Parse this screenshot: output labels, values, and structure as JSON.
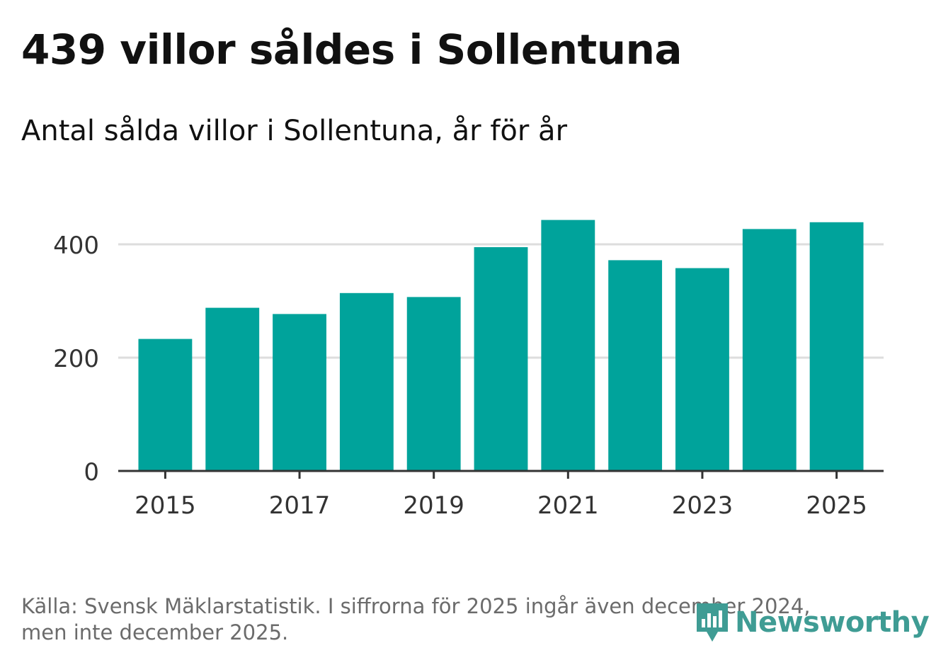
{
  "header": {
    "title": "439 villor såldes i Sollentuna",
    "subtitle": "Antal sålda villor i Sollentuna, år för år"
  },
  "chart_data": {
    "type": "bar",
    "categories": [
      "2015",
      "2016",
      "2017",
      "2018",
      "2019",
      "2020",
      "2021",
      "2022",
      "2023",
      "2024",
      "2025"
    ],
    "values": [
      233,
      288,
      277,
      314,
      307,
      395,
      443,
      372,
      358,
      427,
      439
    ],
    "x_tick_labels": [
      "2015",
      "2017",
      "2019",
      "2021",
      "2023",
      "2025"
    ],
    "y_ticks": [
      0,
      200,
      400
    ],
    "ylim": [
      0,
      475
    ],
    "title": "Antal sålda villor i Sollentuna, år för år",
    "xlabel": "",
    "ylabel": "",
    "grid": true,
    "bar_color": "#00a39b",
    "grid_color": "#dddddd",
    "axis_color": "#333333"
  },
  "footer": {
    "source_line1": "Källa: Svensk Mäklarstatistik. I siffrorna för 2025 ingår även december 2024,",
    "source_line2": "men inte december 2025."
  },
  "logo": {
    "name": "Newsworthy",
    "icon": "newsworthy-bars-icon",
    "color": "#3f9c94"
  }
}
